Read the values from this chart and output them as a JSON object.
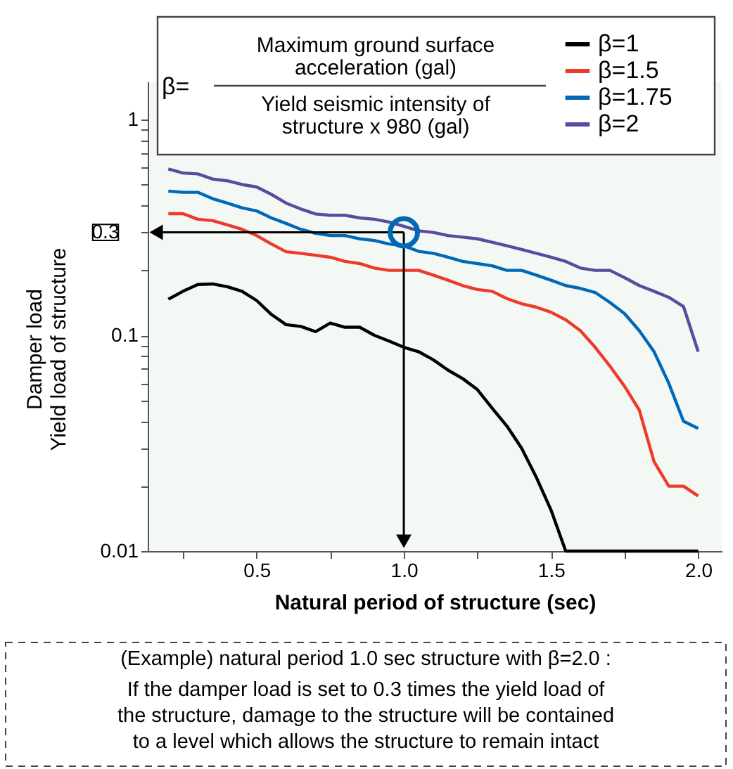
{
  "chart_data": {
    "type": "line",
    "xlabel": "Natural period of structure (sec)",
    "ylabel": "Damper load\nYield load of structure",
    "log": "y",
    "xlim": [
      0.13,
      2.08
    ],
    "ylim": [
      0.01,
      1.5
    ],
    "xticks": [
      {
        "value": 0.25,
        "label": null
      },
      0.5,
      {
        "value": 0.75,
        "label": null
      },
      {
        "value": 1,
        "label": "1.0"
      },
      {
        "value": 1.25,
        "label": null
      },
      1.5,
      {
        "value": 1.75,
        "label": null
      },
      {
        "value": 2,
        "label": "2.0"
      }
    ],
    "yticks": [
      0.01,
      {
        "value": 0.02,
        "label": null
      },
      {
        "value": 0.03,
        "label": null
      },
      {
        "value": 0.04,
        "label": null
      },
      {
        "value": 0.05,
        "label": null
      },
      {
        "value": 0.06,
        "label": null
      },
      {
        "value": 0.07,
        "label": null
      },
      {
        "value": 0.08,
        "label": null
      },
      {
        "value": 0.09,
        "label": null
      },
      0.1,
      {
        "value": 0.2,
        "label": null
      },
      {
        "value": 0.3,
        "label": null
      },
      {
        "value": 0.4,
        "label": null
      },
      {
        "value": 0.5,
        "label": null
      },
      {
        "value": 0.6,
        "label": null
      },
      {
        "value": 0.7,
        "label": null
      },
      {
        "value": 0.8,
        "label": null
      },
      {
        "value": 0.9,
        "label": null
      },
      1
    ],
    "grid": false,
    "legend": "top right",
    "marker": "none",
    "line_style": "solid",
    "x": [
      0.2,
      0.25,
      0.3,
      0.35,
      0.4,
      0.45,
      0.5,
      0.55,
      0.6,
      0.65,
      0.7,
      0.75,
      0.8,
      0.85,
      0.9,
      0.95,
      1.0,
      1.05,
      1.1,
      1.15,
      1.2,
      1.25,
      1.3,
      1.35,
      1.4,
      1.45,
      1.5,
      1.55,
      1.6,
      1.65,
      1.7,
      1.75,
      1.8,
      1.85,
      1.9,
      1.95,
      2.0
    ],
    "series": [
      {
        "name": "β=1",
        "color": "#000000",
        "values": [
          0.147,
          0.16,
          0.172,
          0.173,
          0.168,
          0.16,
          0.145,
          0.125,
          0.112,
          0.11,
          0.104,
          0.114,
          0.109,
          0.109,
          0.1,
          0.094,
          0.088,
          0.084,
          0.077,
          0.069,
          0.063,
          0.056,
          0.046,
          0.038,
          0.03,
          0.022,
          0.0155,
          0.01,
          0.01,
          0.01,
          0.01,
          0.01,
          0.01,
          0.01,
          0.01,
          0.01,
          0.01
        ]
      },
      {
        "name": "β=1.5",
        "color": "#ee3a2a",
        "values": [
          0.366,
          0.366,
          0.345,
          0.34,
          0.325,
          0.31,
          0.29,
          0.265,
          0.244,
          0.24,
          0.235,
          0.23,
          0.22,
          0.215,
          0.205,
          0.2,
          0.2,
          0.2,
          0.19,
          0.18,
          0.17,
          0.163,
          0.16,
          0.148,
          0.14,
          0.135,
          0.128,
          0.118,
          0.105,
          0.088,
          0.072,
          0.058,
          0.045,
          0.026,
          0.02,
          0.02,
          0.018
        ]
      },
      {
        "name": "β=1.75",
        "color": "#0068b7",
        "values": [
          0.466,
          0.46,
          0.46,
          0.43,
          0.41,
          0.39,
          0.377,
          0.35,
          0.33,
          0.31,
          0.297,
          0.29,
          0.29,
          0.28,
          0.275,
          0.265,
          0.26,
          0.245,
          0.24,
          0.23,
          0.22,
          0.215,
          0.21,
          0.2,
          0.2,
          0.19,
          0.18,
          0.17,
          0.165,
          0.158,
          0.142,
          0.126,
          0.105,
          0.084,
          0.06,
          0.04,
          0.037
        ]
      },
      {
        "type": "scatter",
        "color": "#0068b7",
        "marker": "circle",
        "x": [
          1.0
        ],
        "values": [
          0.3
        ]
      },
      {
        "name": "β=2",
        "color": "#5b4a9f",
        "values": [
          0.59,
          0.565,
          0.56,
          0.53,
          0.52,
          0.5,
          0.487,
          0.45,
          0.41,
          0.385,
          0.365,
          0.36,
          0.36,
          0.35,
          0.345,
          0.335,
          0.32,
          0.305,
          0.3,
          0.29,
          0.285,
          0.28,
          0.27,
          0.26,
          0.25,
          0.24,
          0.23,
          0.22,
          0.205,
          0.2,
          0.2,
          0.185,
          0.17,
          0.16,
          0.15,
          0.136,
          0.084
        ]
      }
    ],
    "ref_lines": [
      {
        "axis": "y",
        "value": 0.3,
        "label": "0.3",
        "color": "#000000",
        "line_style": "solid"
      },
      {
        "axis": "x",
        "value": 1.0,
        "color": "#000000",
        "line_style": "solid"
      }
    ],
    "annotations": [
      "β=",
      "Maximum ground surface acceleration (gal)",
      "Yield seismic intensity of structure x 980 (gal)",
      "(Example) natural period 1.0 sec   structure with β=2.0 :",
      "If the damper load is set to 0.3 times the yield load of the structure, damage to the structure will be contained to a level which allows the structure to remain intact"
    ]
  }
}
